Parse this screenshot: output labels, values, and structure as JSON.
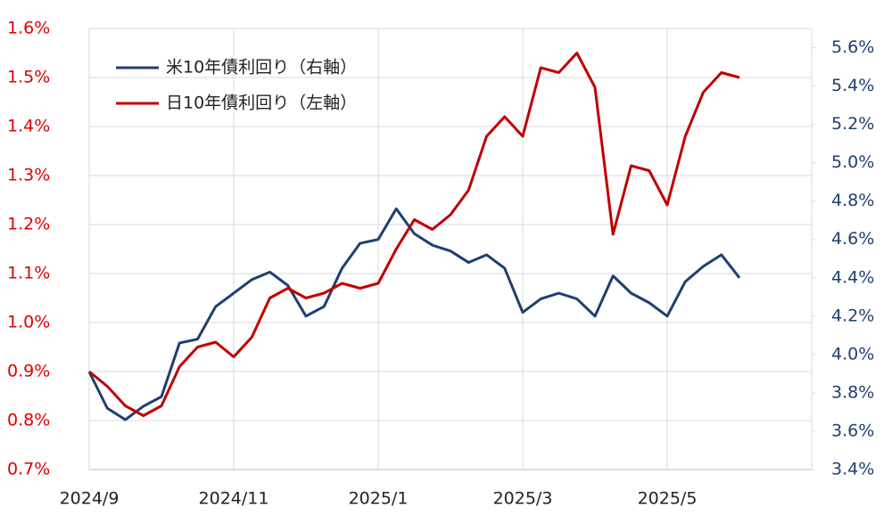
{
  "chart_data": {
    "type": "line",
    "categories": [
      "2024/9",
      null,
      null,
      null,
      null,
      null,
      null,
      null,
      "2024/11",
      null,
      null,
      null,
      null,
      null,
      null,
      null,
      "2025/1",
      null,
      null,
      null,
      null,
      null,
      null,
      null,
      "2025/3",
      null,
      null,
      null,
      null,
      null,
      null,
      null,
      "2025/5",
      null,
      null,
      null,
      null,
      null,
      null,
      null,
      null
    ],
    "series": [
      {
        "name": "米10年債利回り（右軸）",
        "color": "#1f3f73",
        "axis": "y2",
        "values": [
          3.91,
          3.72,
          3.66,
          3.73,
          3.78,
          4.06,
          4.08,
          4.25,
          4.32,
          4.39,
          4.43,
          4.36,
          4.2,
          4.25,
          4.45,
          4.58,
          4.6,
          4.76,
          4.63,
          4.57,
          4.54,
          4.48,
          4.52,
          4.45,
          4.22,
          4.29,
          4.32,
          4.29,
          4.2,
          4.41,
          4.32,
          4.27,
          4.2,
          4.38,
          4.46,
          4.52,
          4.4,
          null,
          null,
          null,
          null
        ]
      },
      {
        "name": "日10年債利回り（左軸）",
        "color": "#c00000",
        "axis": "y",
        "values": [
          0.9,
          0.87,
          0.83,
          0.81,
          0.83,
          0.91,
          0.95,
          0.96,
          0.93,
          0.97,
          1.05,
          1.07,
          1.05,
          1.06,
          1.08,
          1.07,
          1.08,
          1.15,
          1.21,
          1.19,
          1.22,
          1.27,
          1.38,
          1.42,
          1.38,
          1.52,
          1.51,
          1.55,
          1.48,
          1.18,
          1.32,
          1.31,
          1.24,
          1.38,
          1.47,
          1.51,
          1.5,
          null,
          null,
          null,
          null
        ]
      }
    ],
    "ylim": [
      0.7,
      1.6
    ],
    "yticks": [
      {
        "value": 0.7,
        "label": "0.7%"
      },
      {
        "value": 0.8,
        "label": "0.8%"
      },
      {
        "value": 0.9,
        "label": "0.9%"
      },
      {
        "value": 1.0,
        "label": "1.0%"
      },
      {
        "value": 1.1,
        "label": "1.1%"
      },
      {
        "value": 1.2,
        "label": "1.2%"
      },
      {
        "value": 1.3,
        "label": "1.3%"
      },
      {
        "value": 1.4,
        "label": "1.4%"
      },
      {
        "value": 1.5,
        "label": "1.5%"
      },
      {
        "value": 1.6,
        "label": "1.6%"
      }
    ],
    "y2lim": [
      3.4,
      5.7
    ],
    "y2ticks": [
      {
        "value": 3.4,
        "label": "3.4%"
      },
      {
        "value": 3.6,
        "label": "3.6%"
      },
      {
        "value": 3.8,
        "label": "3.8%"
      },
      {
        "value": 4.0,
        "label": "4.0%"
      },
      {
        "value": 4.2,
        "label": "4.2%"
      },
      {
        "value": 4.4,
        "label": "4.4%"
      },
      {
        "value": 4.6,
        "label": "4.6%"
      },
      {
        "value": 4.8,
        "label": "4.8%"
      },
      {
        "value": 5.0,
        "label": "5.0%"
      },
      {
        "value": 5.2,
        "label": "5.2%"
      },
      {
        "value": 5.4,
        "label": "5.4%"
      },
      {
        "value": 5.6,
        "label": "5.6%"
      }
    ],
    "ytick_color": "#e00000",
    "y2tick_color": "#1f3f73",
    "grid": true
  }
}
